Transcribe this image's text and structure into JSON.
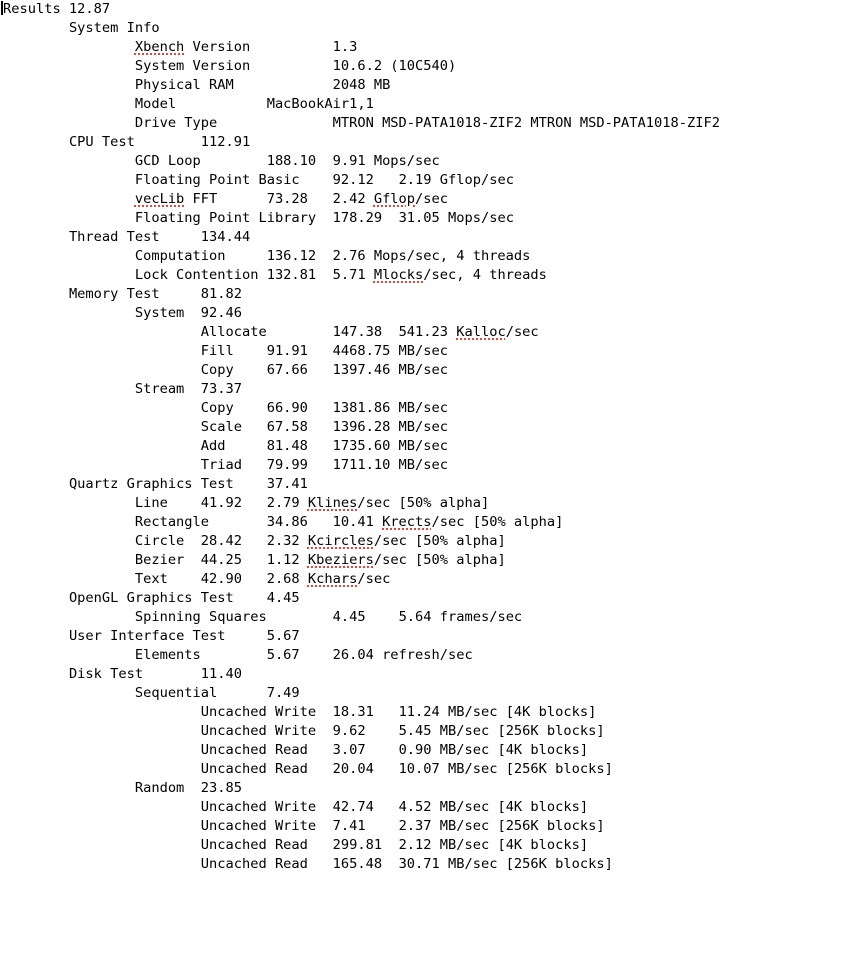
{
  "page": {
    "background_color": "#ffffff",
    "text_color": "#000000",
    "misspelling_underline_color": "#e0483e",
    "caret_visible": true
  },
  "report": {
    "lines": [
      {
        "segs": [
          {
            "t": "Results\t12.87"
          }
        ]
      },
      {
        "segs": [
          {
            "t": "\tSystem Info"
          }
        ]
      },
      {
        "segs": [
          {
            "t": "\t\t"
          },
          {
            "t": "Xbench",
            "u": true
          },
          {
            "t": " Version\t\t1.3"
          }
        ]
      },
      {
        "segs": [
          {
            "t": "\t\tSystem Version\t\t10.6.2 (10C540)"
          }
        ]
      },
      {
        "segs": [
          {
            "t": "\t\tPhysical RAM\t\t2048 MB"
          }
        ]
      },
      {
        "segs": [
          {
            "t": "\t\tModel\t\tMacBookAir1,1"
          }
        ]
      },
      {
        "segs": [
          {
            "t": "\t\tDrive Type\t\tMTRON MSD-PATA1018-ZIF2 MTRON MSD-PATA1018-ZIF2"
          }
        ]
      },
      {
        "segs": [
          {
            "t": "\tCPU Test\t112.91"
          }
        ]
      },
      {
        "segs": [
          {
            "t": "\t\tGCD Loop\t188.10\t9.91 Mops/sec"
          }
        ]
      },
      {
        "segs": [
          {
            "t": "\t\tFloating Point Basic\t92.12\t2.19 Gflop/sec"
          }
        ]
      },
      {
        "segs": [
          {
            "t": "\t\t"
          },
          {
            "t": "vecLib",
            "u": true
          },
          {
            "t": " FFT\t73.28\t2.42 "
          },
          {
            "t": "Gflop",
            "u": true
          },
          {
            "t": "/sec"
          }
        ]
      },
      {
        "segs": [
          {
            "t": "\t\tFloating Point Library\t178.29\t31.05 Mops/sec"
          }
        ]
      },
      {
        "segs": [
          {
            "t": "\tThread Test\t134.44"
          }
        ]
      },
      {
        "segs": [
          {
            "t": "\t\tComputation\t136.12\t2.76 Mops/sec, 4 threads"
          }
        ]
      },
      {
        "segs": [
          {
            "t": "\t\tLock Contention\t132.81\t5.71 "
          },
          {
            "t": "Mlocks",
            "u": true
          },
          {
            "t": "/sec, 4 threads"
          }
        ]
      },
      {
        "segs": [
          {
            "t": "\tMemory Test\t81.82"
          }
        ]
      },
      {
        "segs": [
          {
            "t": "\t\tSystem\t92.46"
          }
        ]
      },
      {
        "segs": [
          {
            "t": "\t\t\tAllocate\t147.38\t541.23 "
          },
          {
            "t": "Kalloc",
            "u": true
          },
          {
            "t": "/sec"
          }
        ]
      },
      {
        "segs": [
          {
            "t": "\t\t\tFill\t91.91\t4468.75 MB/sec"
          }
        ]
      },
      {
        "segs": [
          {
            "t": "\t\t\tCopy\t67.66\t1397.46 MB/sec"
          }
        ]
      },
      {
        "segs": [
          {
            "t": "\t\tStream\t73.37"
          }
        ]
      },
      {
        "segs": [
          {
            "t": "\t\t\tCopy\t66.90\t1381.86 MB/sec"
          }
        ]
      },
      {
        "segs": [
          {
            "t": "\t\t\tScale\t67.58\t1396.28 MB/sec"
          }
        ]
      },
      {
        "segs": [
          {
            "t": "\t\t\tAdd\t81.48\t1735.60 MB/sec"
          }
        ]
      },
      {
        "segs": [
          {
            "t": "\t\t\tTriad\t79.99\t1711.10 MB/sec"
          }
        ]
      },
      {
        "segs": [
          {
            "t": "\tQuartz Graphics Test\t37.41"
          }
        ]
      },
      {
        "segs": [
          {
            "t": "\t\tLine\t41.92\t2.79 "
          },
          {
            "t": "Klines",
            "u": true
          },
          {
            "t": "/sec [50% alpha]"
          }
        ]
      },
      {
        "segs": [
          {
            "t": "\t\tRectangle\t34.86\t10.41 "
          },
          {
            "t": "Krects",
            "u": true
          },
          {
            "t": "/sec [50% alpha]"
          }
        ]
      },
      {
        "segs": [
          {
            "t": "\t\tCircle\t28.42\t2.32 "
          },
          {
            "t": "Kcircles",
            "u": true
          },
          {
            "t": "/sec [50% alpha]"
          }
        ]
      },
      {
        "segs": [
          {
            "t": "\t\tBezier\t44.25\t1.12 "
          },
          {
            "t": "Kbeziers",
            "u": true
          },
          {
            "t": "/sec [50% alpha]"
          }
        ]
      },
      {
        "segs": [
          {
            "t": "\t\tText\t42.90\t2.68 "
          },
          {
            "t": "Kchars",
            "u": true
          },
          {
            "t": "/sec"
          }
        ]
      },
      {
        "segs": [
          {
            "t": "\tOpenGL Graphics Test\t4.45"
          }
        ]
      },
      {
        "segs": [
          {
            "t": "\t\tSpinning Squares\t4.45\t5.64 frames/sec"
          }
        ]
      },
      {
        "segs": [
          {
            "t": "\tUser Interface Test\t5.67"
          }
        ]
      },
      {
        "segs": [
          {
            "t": "\t\tElements\t5.67\t26.04 refresh/sec"
          }
        ]
      },
      {
        "segs": [
          {
            "t": "\tDisk Test\t11.40"
          }
        ]
      },
      {
        "segs": [
          {
            "t": "\t\tSequential\t7.49"
          }
        ]
      },
      {
        "segs": [
          {
            "t": "\t\t\tUncached Write\t18.31\t11.24 MB/sec [4K blocks]"
          }
        ]
      },
      {
        "segs": [
          {
            "t": "\t\t\tUncached Write\t9.62\t5.45 MB/sec [256K blocks]"
          }
        ]
      },
      {
        "segs": [
          {
            "t": "\t\t\tUncached Read\t3.07\t0.90 MB/sec [4K blocks]"
          }
        ]
      },
      {
        "segs": [
          {
            "t": "\t\t\tUncached Read\t20.04\t10.07 MB/sec [256K blocks]"
          }
        ]
      },
      {
        "segs": [
          {
            "t": "\t\tRandom\t23.85"
          }
        ]
      },
      {
        "segs": [
          {
            "t": "\t\t\tUncached Write\t42.74\t4.52 MB/sec [4K blocks]"
          }
        ]
      },
      {
        "segs": [
          {
            "t": "\t\t\tUncached Write\t7.41\t2.37 MB/sec [256K blocks]"
          }
        ]
      },
      {
        "segs": [
          {
            "t": "\t\t\tUncached Read\t299.81\t2.12 MB/sec [4K blocks]"
          }
        ]
      },
      {
        "segs": [
          {
            "t": "\t\t\tUncached Read\t165.48\t30.71 MB/sec [256K blocks]"
          }
        ]
      }
    ]
  }
}
